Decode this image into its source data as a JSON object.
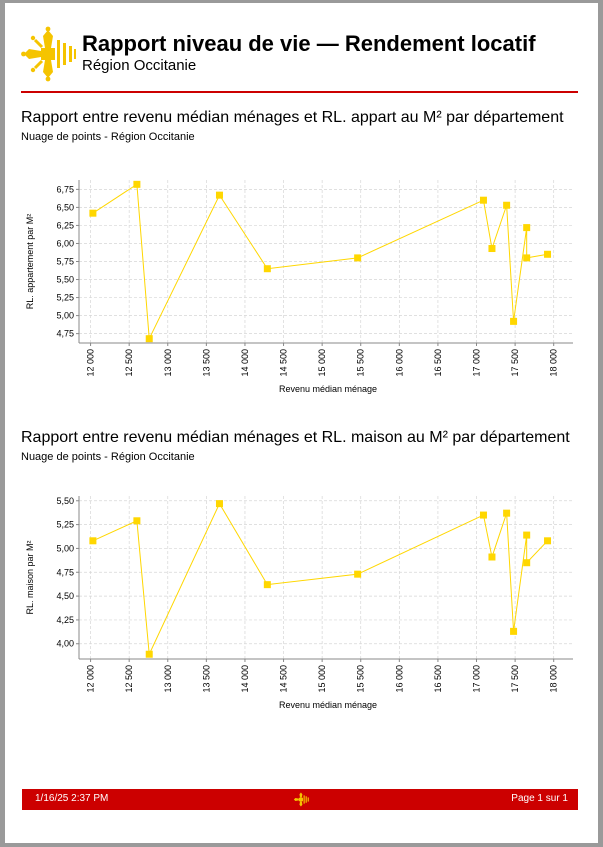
{
  "header": {
    "title": "Rapport niveau de vie — Rendement locatif",
    "subtitle": "Région Occitanie",
    "logo_icon": "occitan-cross-icon",
    "accent_color": "#cc0000",
    "logo_color": "#f5c400"
  },
  "sections": [
    {
      "title": "Rapport entre revenu médian ménages et  RL. appart au M² par département",
      "subtitle": "Nuage de points - Région Occitanie"
    },
    {
      "title": "Rapport entre revenu médian ménages et  RL. maison au M² par département",
      "subtitle": "Nuage de points - Région Occitanie"
    }
  ],
  "footer": {
    "date": "1/16/25 2:37 PM",
    "page": "Page 1 sur  1"
  },
  "chart_data": [
    {
      "type": "line",
      "xlabel": "Revenu médian ménage",
      "ylabel": "RL. appartement par M²",
      "xlim": [
        11850,
        18250
      ],
      "ylim": [
        4.62,
        6.88
      ],
      "xticks": [
        12000,
        12500,
        13000,
        13500,
        14000,
        14500,
        15000,
        15500,
        16000,
        16500,
        17000,
        17500,
        18000
      ],
      "xtick_labels": [
        "12 000",
        "12 500",
        "13 000",
        "13 500",
        "14 000",
        "14 500",
        "15 000",
        "15 500",
        "16 000",
        "16 500",
        "17 000",
        "17 500",
        "18 000"
      ],
      "yticks": [
        4.75,
        5.0,
        5.25,
        5.5,
        5.75,
        6.0,
        6.25,
        6.5,
        6.75
      ],
      "ytick_labels": [
        "4,75",
        "5,00",
        "5,25",
        "5,50",
        "5,75",
        "6,00",
        "6,25",
        "6,50",
        "6,75"
      ],
      "grid": true,
      "color": "#ffd700",
      "points": [
        {
          "x": 12030,
          "y": 6.42
        },
        {
          "x": 12600,
          "y": 6.82
        },
        {
          "x": 12760,
          "y": 4.68
        },
        {
          "x": 13670,
          "y": 6.67
        },
        {
          "x": 14290,
          "y": 5.65
        },
        {
          "x": 15460,
          "y": 5.8
        },
        {
          "x": 17090,
          "y": 6.6
        },
        {
          "x": 17200,
          "y": 5.93
        },
        {
          "x": 17390,
          "y": 6.53
        },
        {
          "x": 17480,
          "y": 4.92
        },
        {
          "x": 17650,
          "y": 6.22
        },
        {
          "x": 17650,
          "y": 5.8
        },
        {
          "x": 17920,
          "y": 5.85
        }
      ]
    },
    {
      "type": "line",
      "xlabel": "Revenu médian ménage",
      "ylabel": "RL. maison par M²",
      "xlim": [
        11850,
        18250
      ],
      "ylim": [
        3.84,
        5.55
      ],
      "xticks": [
        12000,
        12500,
        13000,
        13500,
        14000,
        14500,
        15000,
        15500,
        16000,
        16500,
        17000,
        17500,
        18000
      ],
      "xtick_labels": [
        "12 000",
        "12 500",
        "13 000",
        "13 500",
        "14 000",
        "14 500",
        "15 000",
        "15 500",
        "16 000",
        "16 500",
        "17 000",
        "17 500",
        "18 000"
      ],
      "yticks": [
        4.0,
        4.25,
        4.5,
        4.75,
        5.0,
        5.25,
        5.5
      ],
      "ytick_labels": [
        "4,00",
        "4,25",
        "4,50",
        "4,75",
        "5,00",
        "5,25",
        "5,50"
      ],
      "grid": true,
      "color": "#ffd700",
      "points": [
        {
          "x": 12030,
          "y": 5.08
        },
        {
          "x": 12600,
          "y": 5.29
        },
        {
          "x": 12760,
          "y": 3.89
        },
        {
          "x": 13670,
          "y": 5.47
        },
        {
          "x": 14290,
          "y": 4.62
        },
        {
          "x": 15460,
          "y": 4.73
        },
        {
          "x": 17090,
          "y": 5.35
        },
        {
          "x": 17200,
          "y": 4.91
        },
        {
          "x": 17390,
          "y": 5.37
        },
        {
          "x": 17480,
          "y": 4.13
        },
        {
          "x": 17650,
          "y": 5.14
        },
        {
          "x": 17650,
          "y": 4.85
        },
        {
          "x": 17920,
          "y": 5.08
        }
      ]
    }
  ]
}
